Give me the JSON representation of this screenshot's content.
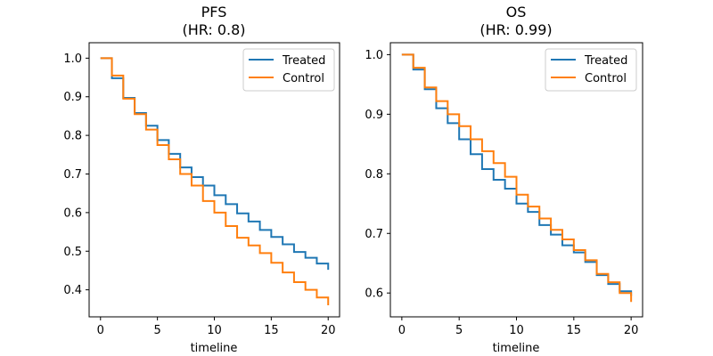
{
  "colors": {
    "treated": "#1f77b4",
    "control": "#ff7f0e"
  },
  "chart_data": [
    {
      "type": "line",
      "step": true,
      "title_line1": "PFS",
      "title_line2": "(HR: 0.8)",
      "xlabel": "timeline",
      "ylabel": "",
      "xlim": [
        -1,
        21
      ],
      "ylim": [
        0.33,
        1.04
      ],
      "xticks": [
        0,
        5,
        10,
        15,
        20
      ],
      "yticks": [
        0.4,
        0.5,
        0.6,
        0.7,
        0.8,
        0.9,
        1.0
      ],
      "legend": "top-right",
      "grid": false,
      "x": [
        0,
        1,
        2,
        3,
        4,
        5,
        6,
        7,
        8,
        9,
        10,
        11,
        12,
        13,
        14,
        15,
        16,
        17,
        18,
        19,
        20
      ],
      "series": [
        {
          "name": "Treated",
          "values": [
            1.0,
            0.948,
            0.897,
            0.858,
            0.825,
            0.788,
            0.752,
            0.717,
            0.692,
            0.67,
            0.645,
            0.622,
            0.598,
            0.577,
            0.555,
            0.537,
            0.518,
            0.498,
            0.483,
            0.468,
            0.452
          ]
        },
        {
          "name": "Control",
          "values": [
            1.0,
            0.955,
            0.895,
            0.855,
            0.815,
            0.775,
            0.738,
            0.7,
            0.67,
            0.63,
            0.6,
            0.565,
            0.535,
            0.515,
            0.495,
            0.47,
            0.445,
            0.42,
            0.4,
            0.38,
            0.36
          ]
        }
      ]
    },
    {
      "type": "line",
      "step": true,
      "title_line1": "OS",
      "title_line2": "(HR: 0.99)",
      "xlabel": "timeline",
      "ylabel": "",
      "xlim": [
        -1,
        21
      ],
      "ylim": [
        0.56,
        1.02
      ],
      "xticks": [
        0,
        5,
        10,
        15,
        20
      ],
      "yticks": [
        0.6,
        0.7,
        0.8,
        0.9,
        1.0
      ],
      "legend": "top-right",
      "grid": false,
      "x": [
        0,
        1,
        2,
        3,
        4,
        5,
        6,
        7,
        8,
        9,
        10,
        11,
        12,
        13,
        14,
        15,
        16,
        17,
        18,
        19,
        20
      ],
      "series": [
        {
          "name": "Treated",
          "values": [
            1.0,
            0.975,
            0.942,
            0.91,
            0.885,
            0.858,
            0.833,
            0.808,
            0.79,
            0.775,
            0.75,
            0.736,
            0.714,
            0.698,
            0.68,
            0.668,
            0.652,
            0.63,
            0.615,
            0.603,
            0.595
          ]
        },
        {
          "name": "Control",
          "values": [
            1.0,
            0.978,
            0.945,
            0.922,
            0.9,
            0.88,
            0.858,
            0.838,
            0.818,
            0.795,
            0.765,
            0.745,
            0.725,
            0.706,
            0.69,
            0.672,
            0.655,
            0.632,
            0.618,
            0.6,
            0.585
          ]
        }
      ]
    }
  ]
}
